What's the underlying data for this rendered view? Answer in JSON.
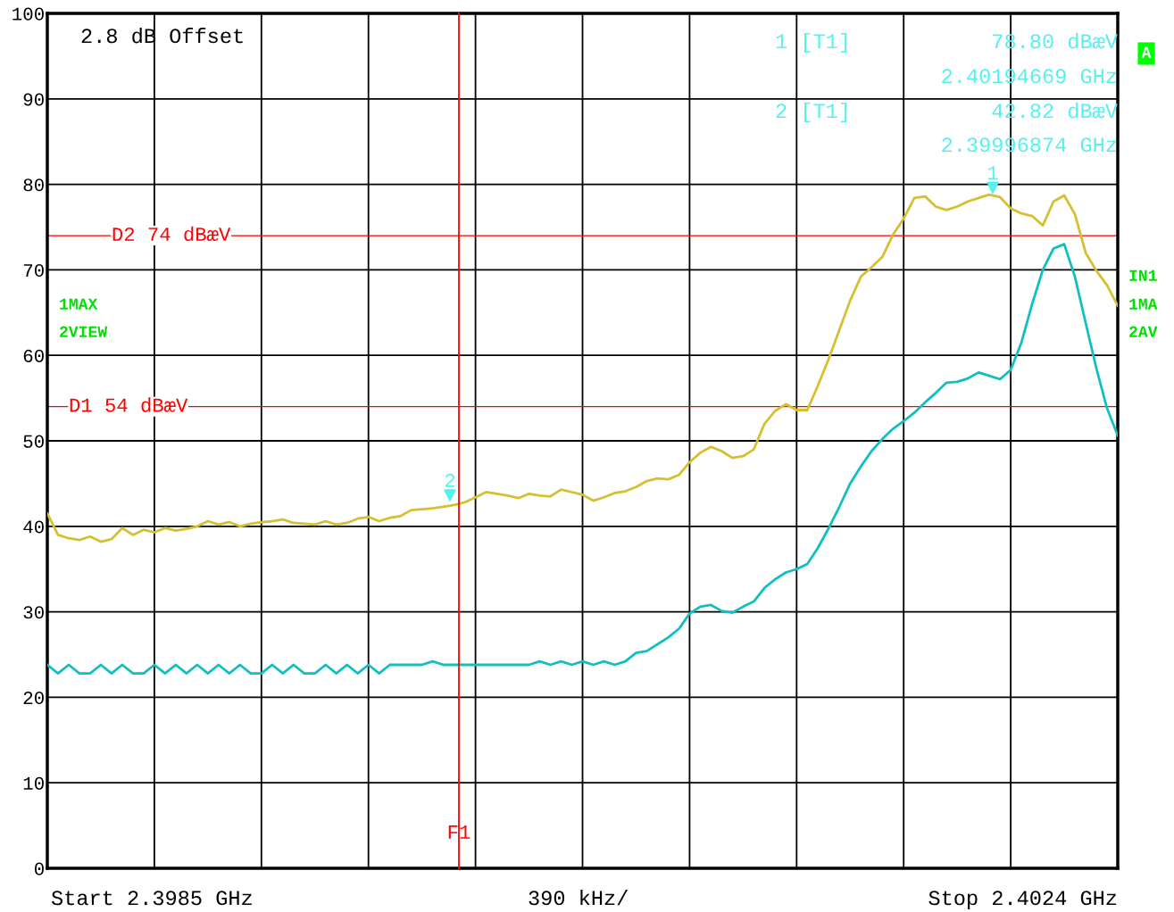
{
  "chart_data": {
    "type": "line",
    "categories": [
      null,
      null,
      null,
      null,
      null,
      null,
      null,
      null,
      null,
      null,
      null,
      null,
      null,
      null,
      null,
      null,
      null,
      null,
      null,
      null,
      null,
      null,
      null,
      null,
      null,
      null,
      null,
      null,
      null,
      null,
      null,
      null,
      null,
      null,
      null,
      null,
      null,
      null,
      null,
      null,
      null,
      null,
      null,
      null,
      null,
      null,
      null,
      null,
      null,
      null,
      null,
      null,
      null,
      null,
      null,
      null,
      null,
      null,
      null,
      null,
      null,
      null,
      null,
      null,
      null,
      null,
      null,
      null,
      null,
      null,
      null,
      null,
      null,
      null,
      null,
      null,
      null,
      null,
      null,
      null,
      null,
      null,
      null,
      null,
      null,
      null,
      null,
      null,
      null,
      null,
      null,
      null,
      null,
      null,
      null,
      null,
      null,
      null,
      null,
      null,
      null
    ],
    "ylim": [
      0,
      100
    ],
    "yticks": [
      0,
      10,
      20,
      30,
      40,
      50,
      60,
      70,
      80,
      90,
      100
    ],
    "grid": true,
    "line_style": "solid",
    "marker": "none",
    "series": [
      {
        "color": "#d4c030",
        "values": [
          41.5,
          39,
          38.6,
          38.4,
          38.8,
          38.2,
          38.5,
          39.8,
          39,
          39.6,
          39.3,
          39.8,
          39.5,
          39.7,
          40,
          40.6,
          40.2,
          40.5,
          40,
          40.3,
          40.5,
          40.6,
          40.8,
          40.4,
          40.3,
          40.2,
          40.6,
          40.2,
          40.4,
          40.9,
          41.1,
          40.6,
          41,
          41.2,
          41.9,
          42,
          42.1,
          42.3,
          42.5,
          42.8,
          43.4,
          44,
          43.8,
          43.6,
          43.3,
          43.8,
          43.6,
          43.5,
          44.3,
          44,
          43.7,
          43,
          43.4,
          43.9,
          44.1,
          44.6,
          45.3,
          45.6,
          45.5,
          46,
          47.5,
          48.6,
          49.3,
          48.8,
          48,
          48.2,
          49,
          52,
          53.5,
          54.3,
          53.6,
          53.6,
          56.5,
          59.6,
          63,
          66.4,
          69.2,
          70.3,
          71.5,
          74.1,
          76,
          78.4,
          78.6,
          77.4,
          77,
          77.4,
          78,
          78.4,
          78.8,
          78.5,
          77.2,
          76.6,
          76.3,
          75.2,
          78,
          78.7,
          76.5,
          72,
          69.9,
          68.2,
          65.8
        ]
      },
      {
        "color": "#10c0c0",
        "values": [
          23.8,
          22.8,
          23.8,
          22.8,
          22.8,
          23.8,
          22.8,
          23.8,
          22.8,
          22.8,
          23.8,
          22.8,
          23.8,
          22.8,
          23.8,
          22.8,
          23.8,
          22.8,
          23.8,
          22.8,
          22.8,
          23.8,
          22.8,
          23.8,
          22.8,
          22.8,
          23.8,
          22.8,
          23.8,
          22.8,
          23.8,
          22.8,
          23.8,
          23.8,
          23.8,
          23.8,
          24.2,
          23.8,
          23.8,
          23.8,
          23.8,
          23.8,
          23.8,
          23.8,
          23.8,
          23.8,
          24.2,
          23.8,
          24.2,
          23.8,
          24.2,
          23.8,
          24.2,
          23.8,
          24.2,
          25.2,
          25.4,
          26.2,
          27,
          28,
          29.8,
          30.6,
          30.8,
          30.1,
          29.9,
          30.6,
          31.2,
          32.8,
          33.8,
          34.6,
          35,
          35.6,
          37.5,
          39.8,
          42.3,
          45,
          47,
          48.8,
          50.2,
          51.4,
          52.3,
          53.3,
          54.5,
          55.6,
          56.8,
          56.9,
          57.3,
          58,
          57.6,
          57.2,
          58.3,
          61.5,
          66,
          70,
          72.5,
          73,
          69.2,
          63.8,
          58.5,
          53.8,
          50.6
        ]
      }
    ],
    "ref_lines": [
      {
        "axis": "y",
        "value": 74,
        "label": "D2 74 dBæV",
        "color": "#ff0000"
      },
      {
        "axis": "y",
        "value": 54,
        "label": "D1 54 dBæV",
        "color": "#ff0000"
      }
    ],
    "annotations": [
      "2.8 dB Offset",
      "1 [T1]",
      "78.80 dBæV",
      "2.40194669 GHz",
      "2 [T1]",
      "42.82 dBæV",
      "2.39996874 GHz",
      "1MAX",
      "2VIEW",
      "IN1",
      "1MA",
      "2AV",
      "A",
      "Start 2.3985 GHz",
      "390 kHz/",
      "Stop 2.4024 GHz",
      "F1",
      {
        "text": "1",
        "y": 78.8
      },
      {
        "text": "2",
        "y": 42.82
      }
    ]
  }
}
